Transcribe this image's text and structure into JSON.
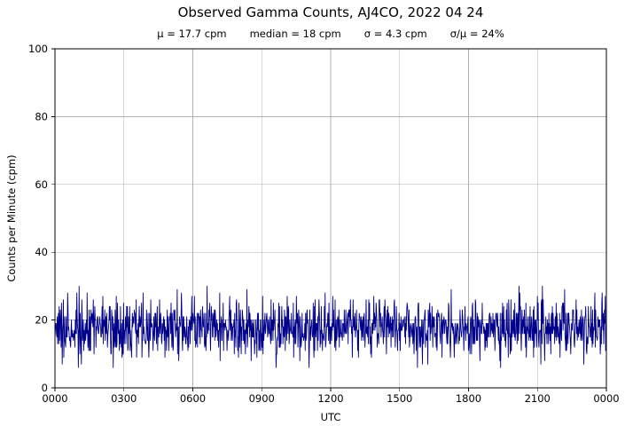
{
  "chart_data": {
    "type": "line",
    "title": "Observed Gamma Counts, AJ4CO, 2022 04 24",
    "stats_labels": [
      "μ = 17.7 cpm",
      "median = 18 cpm",
      "σ = 4.3 cpm",
      "σ/μ = 24%"
    ],
    "stats": {
      "mean_cpm": 17.7,
      "median_cpm": 18,
      "sigma_cpm": 4.3,
      "sigma_over_mean_pct": 24
    },
    "xlabel": "UTC",
    "ylabel": "Counts per Minute (cpm)",
    "xlim_minutes": [
      0,
      1440
    ],
    "ylim": [
      0,
      100
    ],
    "x_ticks_minutes": [
      0,
      180,
      360,
      540,
      720,
      900,
      1080,
      1260,
      1440
    ],
    "x_tick_labels": [
      "0000",
      "0300",
      "0600",
      "0900",
      "1200",
      "1500",
      "1800",
      "2100",
      "0000"
    ],
    "y_ticks": [
      0,
      20,
      40,
      60,
      80,
      100
    ],
    "y_tick_labels": [
      "0",
      "20",
      "40",
      "60",
      "80",
      "100"
    ],
    "series": [
      {
        "name": "observed-gamma-counts",
        "n_points": 1440,
        "distribution": "gaussian-integer",
        "mean": 17.7,
        "sigma": 4.3,
        "min": 6,
        "max": 35,
        "seed": 20220424
      }
    ],
    "grid": true,
    "legend": "none",
    "line_color": "#00008b",
    "grid_color": "#b0b0b0",
    "axis_color": "#000000",
    "background": "#ffffff"
  }
}
